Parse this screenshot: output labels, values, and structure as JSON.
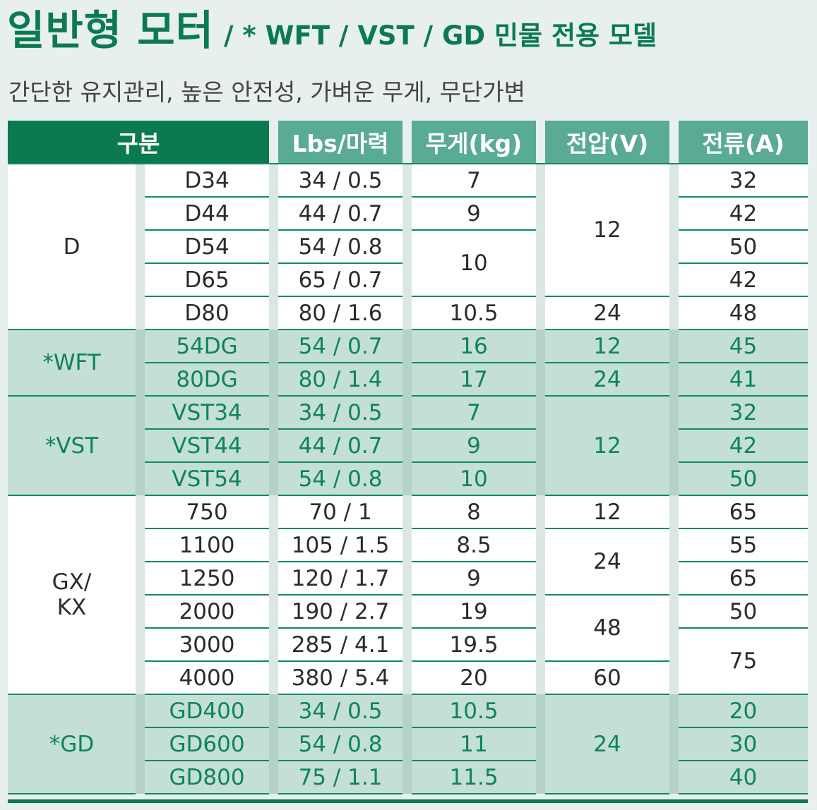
{
  "title": {
    "main": "일반형 모터",
    "sub": "/ * WFT / VST / GD 민물 전용 모델"
  },
  "subtitle": "간단한 유지관리, 높은 안전성, 가벼운 무게, 무단가변",
  "table": {
    "headers": [
      "구분",
      "Lbs/마력",
      "무게(kg)",
      "전압(V)",
      "전류(A)"
    ],
    "groups": [
      {
        "name": "D",
        "rows": [
          {
            "model": "D34",
            "lbs": "34 / 0.5",
            "weight": "7",
            "voltage": "12",
            "current": "32"
          },
          {
            "model": "D44",
            "lbs": "44 / 0.7",
            "weight": "9",
            "current": "42"
          },
          {
            "model": "D54",
            "lbs": "54 / 0.8",
            "weight": "10",
            "current": "50"
          },
          {
            "model": "D65",
            "lbs": "65 / 0.7",
            "current": "42"
          },
          {
            "model": "D80",
            "lbs": "80 / 1.6",
            "weight": "10.5",
            "voltage": "24",
            "current": "48"
          }
        ]
      },
      {
        "name": "*WFT",
        "rows": [
          {
            "model": "54DG",
            "lbs": "54 / 0.7",
            "weight": "16",
            "voltage": "12",
            "current": "45"
          },
          {
            "model": "80DG",
            "lbs": "80 / 1.4",
            "weight": "17",
            "voltage": "24",
            "current": "41"
          }
        ]
      },
      {
        "name": "*VST",
        "rows": [
          {
            "model": "VST34",
            "lbs": "34 / 0.5",
            "weight": "7",
            "voltage": "12",
            "current": "32"
          },
          {
            "model": "VST44",
            "lbs": "44 / 0.7",
            "weight": "9",
            "current": "42"
          },
          {
            "model": "VST54",
            "lbs": "54 / 0.8",
            "weight": "10",
            "current": "50"
          }
        ]
      },
      {
        "name_line1": "GX/",
        "name_line2": "KX",
        "rows": [
          {
            "model": "750",
            "lbs": "70 / 1",
            "weight": "8",
            "voltage": "12",
            "current": "65"
          },
          {
            "model": "1100",
            "lbs": "105 / 1.5",
            "weight": "8.5",
            "voltage": "24",
            "current": "55"
          },
          {
            "model": "1250",
            "lbs": "120 / 1.7",
            "weight": "9",
            "current": "65"
          },
          {
            "model": "2000",
            "lbs": "190 / 2.7",
            "weight": "19",
            "voltage": "48",
            "current": "50"
          },
          {
            "model": "3000",
            "lbs": "285 / 4.1",
            "weight": "19.5",
            "current": "75"
          },
          {
            "model": "4000",
            "lbs": "380 / 5.4",
            "weight": "20",
            "voltage": "60"
          }
        ]
      },
      {
        "name": "*GD",
        "rows": [
          {
            "model": "GD400",
            "lbs": "34 / 0.5",
            "weight": "10.5",
            "voltage": "24",
            "current": "20"
          },
          {
            "model": "GD600",
            "lbs": "54 / 0.8",
            "weight": "11",
            "current": "30"
          },
          {
            "model": "GD800",
            "lbs": "75 / 1.1",
            "weight": "11.5",
            "current": "40"
          }
        ]
      }
    ]
  },
  "colors": {
    "brand_green": "#0b7a51",
    "header_teal": "#5aab94",
    "row_green": "#c4dfd7",
    "text_green": "#0d8459"
  }
}
